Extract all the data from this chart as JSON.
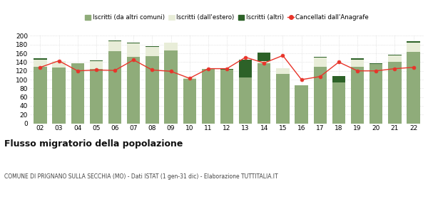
{
  "years": [
    "02",
    "03",
    "04",
    "05",
    "06",
    "07",
    "08",
    "09",
    "10",
    "11",
    "12",
    "13",
    "14",
    "15",
    "16",
    "17",
    "18",
    "19",
    "20",
    "21",
    "22"
  ],
  "iscritti_altri_comuni": [
    130,
    127,
    138,
    124,
    165,
    152,
    153,
    167,
    102,
    124,
    123,
    105,
    138,
    113,
    87,
    130,
    93,
    130,
    135,
    140,
    163
  ],
  "iscritti_estero": [
    15,
    16,
    0,
    18,
    22,
    30,
    22,
    18,
    3,
    0,
    0,
    0,
    5,
    13,
    0,
    20,
    0,
    15,
    0,
    15,
    22
  ],
  "iscritti_altri": [
    4,
    0,
    0,
    2,
    2,
    2,
    2,
    0,
    0,
    0,
    2,
    40,
    18,
    0,
    0,
    2,
    15,
    3,
    2,
    2,
    2
  ],
  "cancellati": [
    128,
    143,
    120,
    122,
    121,
    145,
    122,
    119,
    103,
    125,
    125,
    151,
    138,
    155,
    100,
    107,
    140,
    120,
    120,
    125,
    128
  ],
  "color_comuni": "#8fac7a",
  "color_estero": "#e8edd8",
  "color_altri": "#2d6228",
  "color_cancellati": "#e8342a",
  "ylim": [
    0,
    200
  ],
  "yticks": [
    0,
    20,
    40,
    60,
    80,
    100,
    120,
    140,
    160,
    180,
    200
  ],
  "title": "Flusso migratorio della popolazione",
  "subtitle": "COMUNE DI PRIGNANO SULLA SECCHIA (MO) - Dati ISTAT (1 gen-31 dic) - Elaborazione TUTTITALIA.IT",
  "legend_labels": [
    "Iscritti (da altri comuni)",
    "Iscritti (dall'estero)",
    "Iscritti (altri)",
    "Cancellati dall'Anagrafe"
  ],
  "bg_color": "#ffffff",
  "grid_color": "#d0d0d0"
}
